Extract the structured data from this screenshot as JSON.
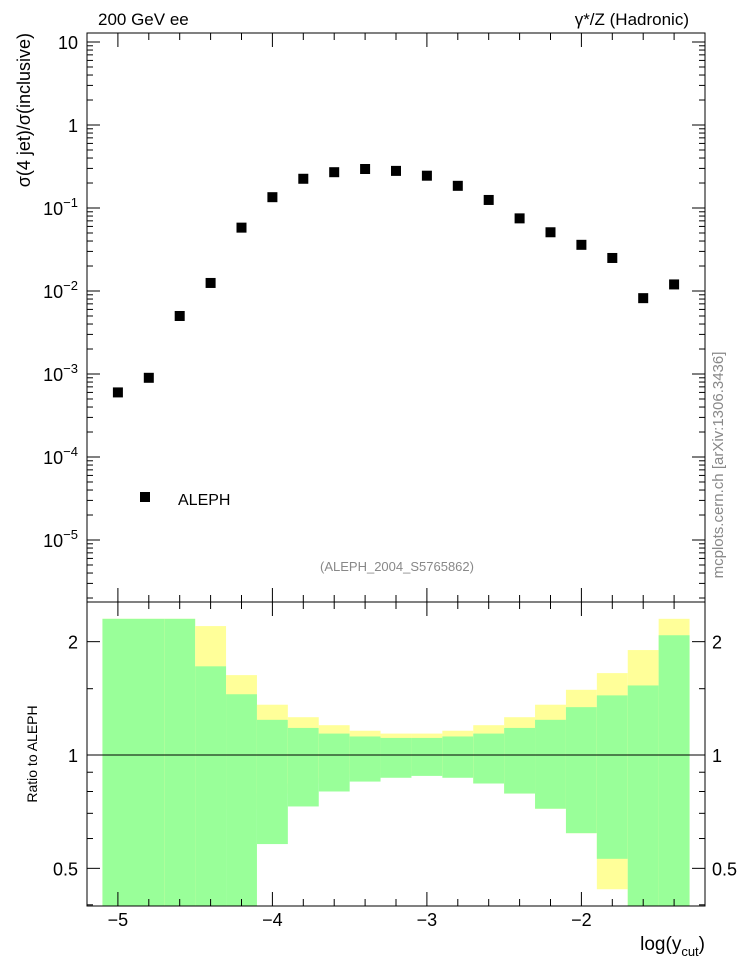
{
  "header": {
    "left_label": "200 GeV ee",
    "right_label": "γ*/Z (Hadronic)"
  },
  "side_label": "mcplots.cern.ch [arXiv:1306.3436]",
  "analysis_label": "(ALEPH_2004_S5765862)",
  "legend": {
    "label": "ALEPH"
  },
  "colors": {
    "data_marker": "#000000",
    "band_inner": "#99ff99",
    "band_outer": "#ffff99",
    "ref_line": "#000000",
    "watermark": "#888888"
  },
  "chart_data": [
    {
      "type": "scatter",
      "name": "main",
      "ylabel": "σ(4 jet)/σ(inclusive)",
      "yscale": "log",
      "ylim": [
        3e-06,
        15
      ],
      "xlim": [
        -5.2,
        -1.2
      ],
      "ytick_labels": [
        "10",
        "1",
        "10^-1",
        "10^-2",
        "10^-3",
        "10^-4",
        "10^-5"
      ],
      "series": [
        {
          "name": "ALEPH",
          "x": [
            -5.0,
            -4.8,
            -4.6,
            -4.4,
            -4.2,
            -4.0,
            -3.8,
            -3.6,
            -3.4,
            -3.2,
            -3.0,
            -2.8,
            -2.6,
            -2.4,
            -2.2,
            -2.0,
            -1.8,
            -1.6,
            -1.4
          ],
          "y": [
            0.0006,
            0.0009,
            0.005,
            0.0125,
            0.058,
            0.135,
            0.225,
            0.27,
            0.295,
            0.28,
            0.245,
            0.185,
            0.125,
            0.075,
            0.051,
            0.036,
            0.025,
            0.0082,
            0.012
          ]
        }
      ]
    },
    {
      "type": "area",
      "name": "ratio",
      "ylabel": "Ratio to ALEPH",
      "xlabel": "log(y_cut)",
      "xlim": [
        -5.2,
        -1.2
      ],
      "ylim": [
        0.35,
        2.3
      ],
      "xtick_labels": [
        "−5",
        "−4",
        "−3",
        "−2"
      ],
      "ytick_labels": [
        "2",
        "1",
        "0.5"
      ],
      "reference": 1.0,
      "bins": {
        "x_low": [
          -5.1,
          -4.7,
          -4.5,
          -4.3,
          -4.1,
          -3.9,
          -3.7,
          -3.5,
          -3.3,
          -3.1,
          -2.9,
          -2.7,
          -2.5,
          -2.3,
          -2.1,
          -1.9,
          -1.7,
          -1.5
        ],
        "x_high": [
          -4.7,
          -4.5,
          -4.3,
          -4.1,
          -3.9,
          -3.7,
          -3.5,
          -3.3,
          -3.1,
          -2.9,
          -2.7,
          -2.5,
          -2.3,
          -2.1,
          -1.9,
          -1.7,
          -1.5,
          -1.3
        ],
        "outer_low": [
          0.35,
          0.35,
          0.35,
          0.72,
          0.79,
          0.84,
          0.87,
          0.89,
          0.9,
          0.9,
          0.88,
          0.84,
          0.79,
          0.72,
          0.62,
          0.44,
          0.35,
          0.35
        ],
        "outer_high": [
          2.3,
          2.3,
          2.2,
          1.63,
          1.36,
          1.26,
          1.2,
          1.16,
          1.14,
          1.14,
          1.16,
          1.2,
          1.26,
          1.36,
          1.49,
          1.65,
          1.9,
          2.3
        ],
        "inner_low": [
          0.35,
          0.35,
          0.35,
          0.35,
          0.58,
          0.73,
          0.8,
          0.85,
          0.87,
          0.88,
          0.87,
          0.84,
          0.79,
          0.72,
          0.62,
          0.53,
          0.35,
          0.35
        ],
        "inner_high": [
          2.3,
          2.3,
          1.72,
          1.45,
          1.24,
          1.18,
          1.14,
          1.12,
          1.11,
          1.11,
          1.12,
          1.14,
          1.18,
          1.24,
          1.34,
          1.44,
          1.53,
          2.08
        ]
      }
    }
  ]
}
